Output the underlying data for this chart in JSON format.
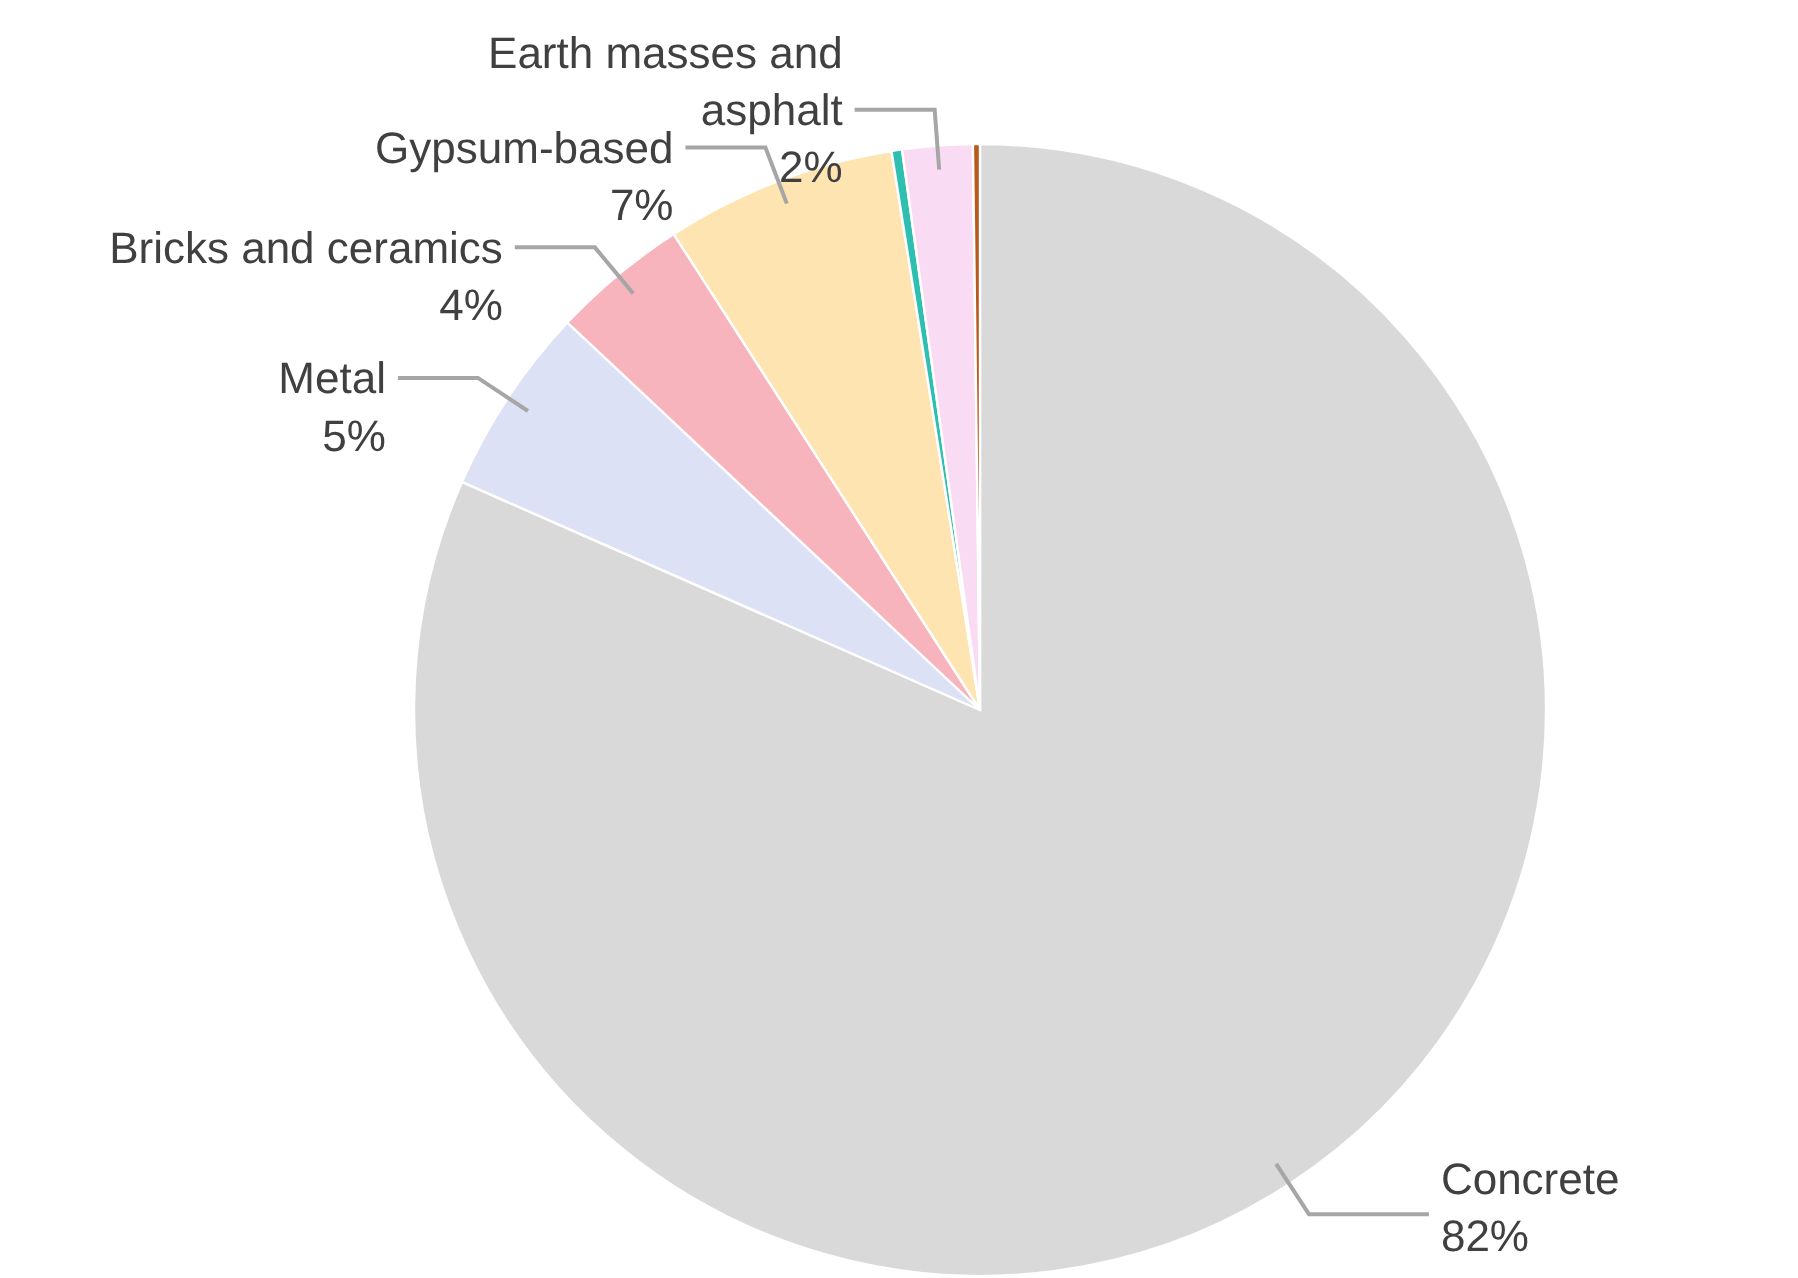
{
  "chart_data": {
    "type": "pie",
    "categories": [
      "Concrete",
      "Metal",
      "Bricks and ceramics",
      "Gypsum-based",
      null,
      "Earth masses and asphalt",
      null
    ],
    "values": [
      81.6,
      5.4,
      3.9,
      6.6,
      0.3,
      2.0,
      0.2
    ],
    "value_labels": [
      "82%",
      "5%",
      "4%",
      "7%",
      null,
      "2%",
      null
    ],
    "colors": [
      "#d9d9d9",
      "#dde1f5",
      "#f8b4bd",
      "#fde4b0",
      "#2fbfb0",
      "#f9dcf3",
      "#b85a1c"
    ]
  }
}
